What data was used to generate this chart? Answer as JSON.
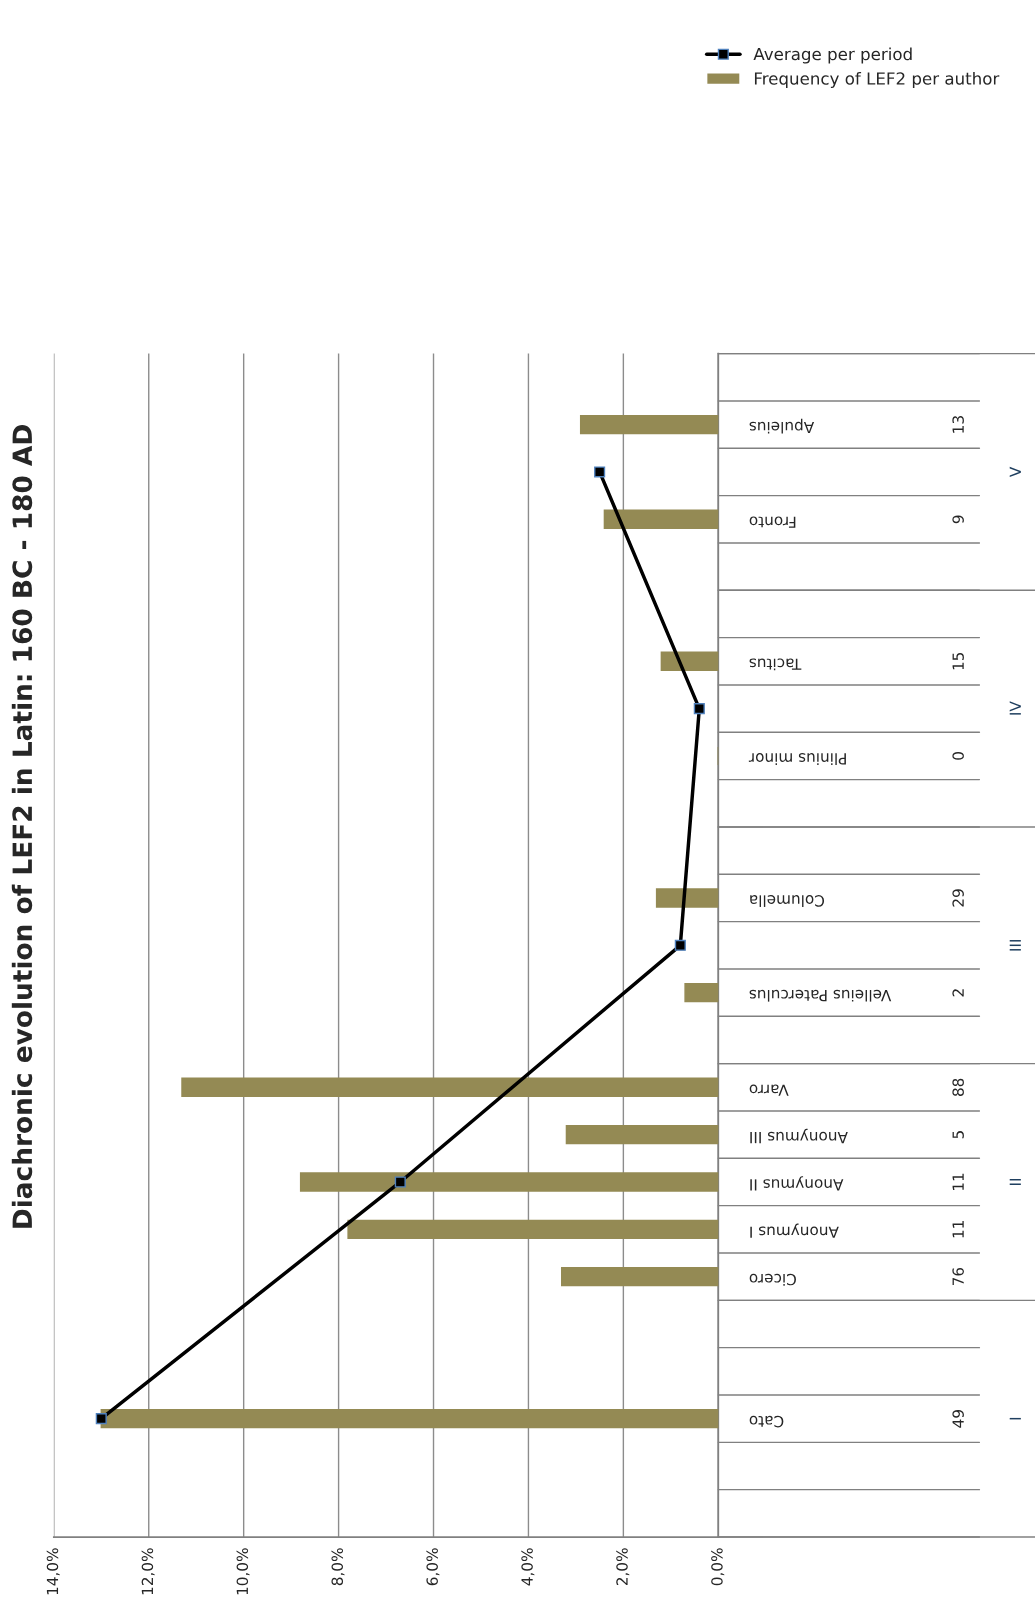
{
  "chart_data": {
    "type": "bar",
    "orientation": "horizontal",
    "title": "Diachronic evolution of LEF2 in Latin: 160 BC - 180 AD",
    "categories": [
      null,
      "Apuleius",
      null,
      "Fronto",
      null,
      null,
      "Tacitus",
      null,
      "Plinius minor",
      null,
      null,
      "Columella",
      null,
      "Velleius Paterculus",
      null,
      "Varro",
      "Anonymus III",
      "Anonymus II",
      "Anonymus I",
      "Cicero",
      null,
      null,
      "Cato",
      null,
      null
    ],
    "series": [
      {
        "name": "Frequency of LEF2 per author",
        "color": "#948a54",
        "values": [
          null,
          2.9,
          null,
          2.4,
          null,
          null,
          1.2,
          null,
          0,
          null,
          null,
          1.3,
          null,
          0.7,
          null,
          11.3,
          3.2,
          8.8,
          7.8,
          3.3,
          null,
          null,
          13.0,
          null,
          null
        ]
      },
      {
        "name": "Average per period",
        "type": "line",
        "color": "#000000",
        "marker": "square",
        "line_style": "solid",
        "values": [
          null,
          null,
          2.5,
          null,
          null,
          null,
          null,
          0.4,
          null,
          null,
          null,
          null,
          0.8,
          null,
          null,
          null,
          null,
          6.7,
          null,
          null,
          null,
          null,
          13.0,
          null,
          null
        ]
      }
    ],
    "xlim": [
      14,
      0
    ],
    "xticks": [
      {
        "value": 0,
        "label": "0,0%"
      },
      {
        "value": 2,
        "label": "2,0%"
      },
      {
        "value": 4,
        "label": "4,0%"
      },
      {
        "value": 6,
        "label": "6,0%"
      },
      {
        "value": 8,
        "label": "8,0%"
      },
      {
        "value": 10,
        "label": "10,0%"
      },
      {
        "value": 12,
        "label": "12,0%"
      },
      {
        "value": 14,
        "label": "14,0%"
      }
    ],
    "grid": "x",
    "legend": "top right",
    "annotations": [
      "13",
      "9",
      "15",
      "0",
      "29",
      "2",
      "88",
      "5",
      "11",
      "11",
      "76",
      "49",
      "V",
      "IV",
      "III",
      "II",
      "I"
    ]
  }
}
